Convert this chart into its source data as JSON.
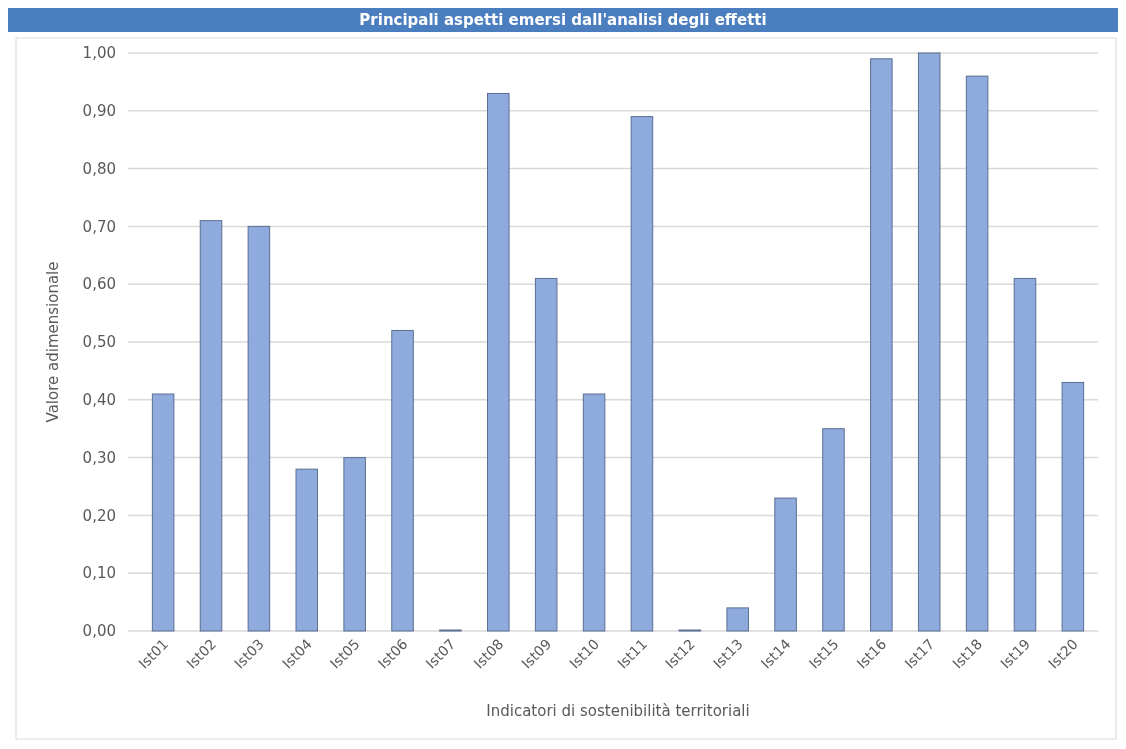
{
  "chart_data": {
    "type": "bar",
    "title": "Principali aspetti emersi dall'analisi degli effetti",
    "xlabel": "Indicatori di sostenibilità territoriali",
    "ylabel": "Valore adimensionale",
    "categories": [
      "Ist01",
      "Ist02",
      "Ist03",
      "Ist04",
      "Ist05",
      "Ist06",
      "Ist07",
      "Ist08",
      "Ist09",
      "Ist10",
      "Ist11",
      "Ist12",
      "Ist13",
      "Ist14",
      "Ist15",
      "Ist16",
      "Ist17",
      "Ist18",
      "Ist19",
      "Ist20"
    ],
    "values": [
      0.41,
      0.71,
      0.7,
      0.28,
      0.3,
      0.52,
      0,
      0.93,
      0.61,
      0.41,
      0.89,
      0,
      0.04,
      0.23,
      0.35,
      0.99,
      1.0,
      0.96,
      0.61,
      0.43
    ],
    "color": "#8faadc",
    "ylim": [
      0,
      1
    ],
    "yticks": [
      {
        "value": 0,
        "label": "0,00"
      },
      {
        "value": 0.1,
        "label": "0,10"
      },
      {
        "value": 0.2,
        "label": "0,20"
      },
      {
        "value": 0.3,
        "label": "0,30"
      },
      {
        "value": 0.4,
        "label": "0,40"
      },
      {
        "value": 0.5,
        "label": "0,50"
      },
      {
        "value": 0.6,
        "label": "0,60"
      },
      {
        "value": 0.7,
        "label": "0,70"
      },
      {
        "value": 0.8,
        "label": "0,80"
      },
      {
        "value": 0.9,
        "label": "0,90"
      },
      {
        "value": 1,
        "label": "1,00"
      }
    ],
    "grid": "y"
  }
}
